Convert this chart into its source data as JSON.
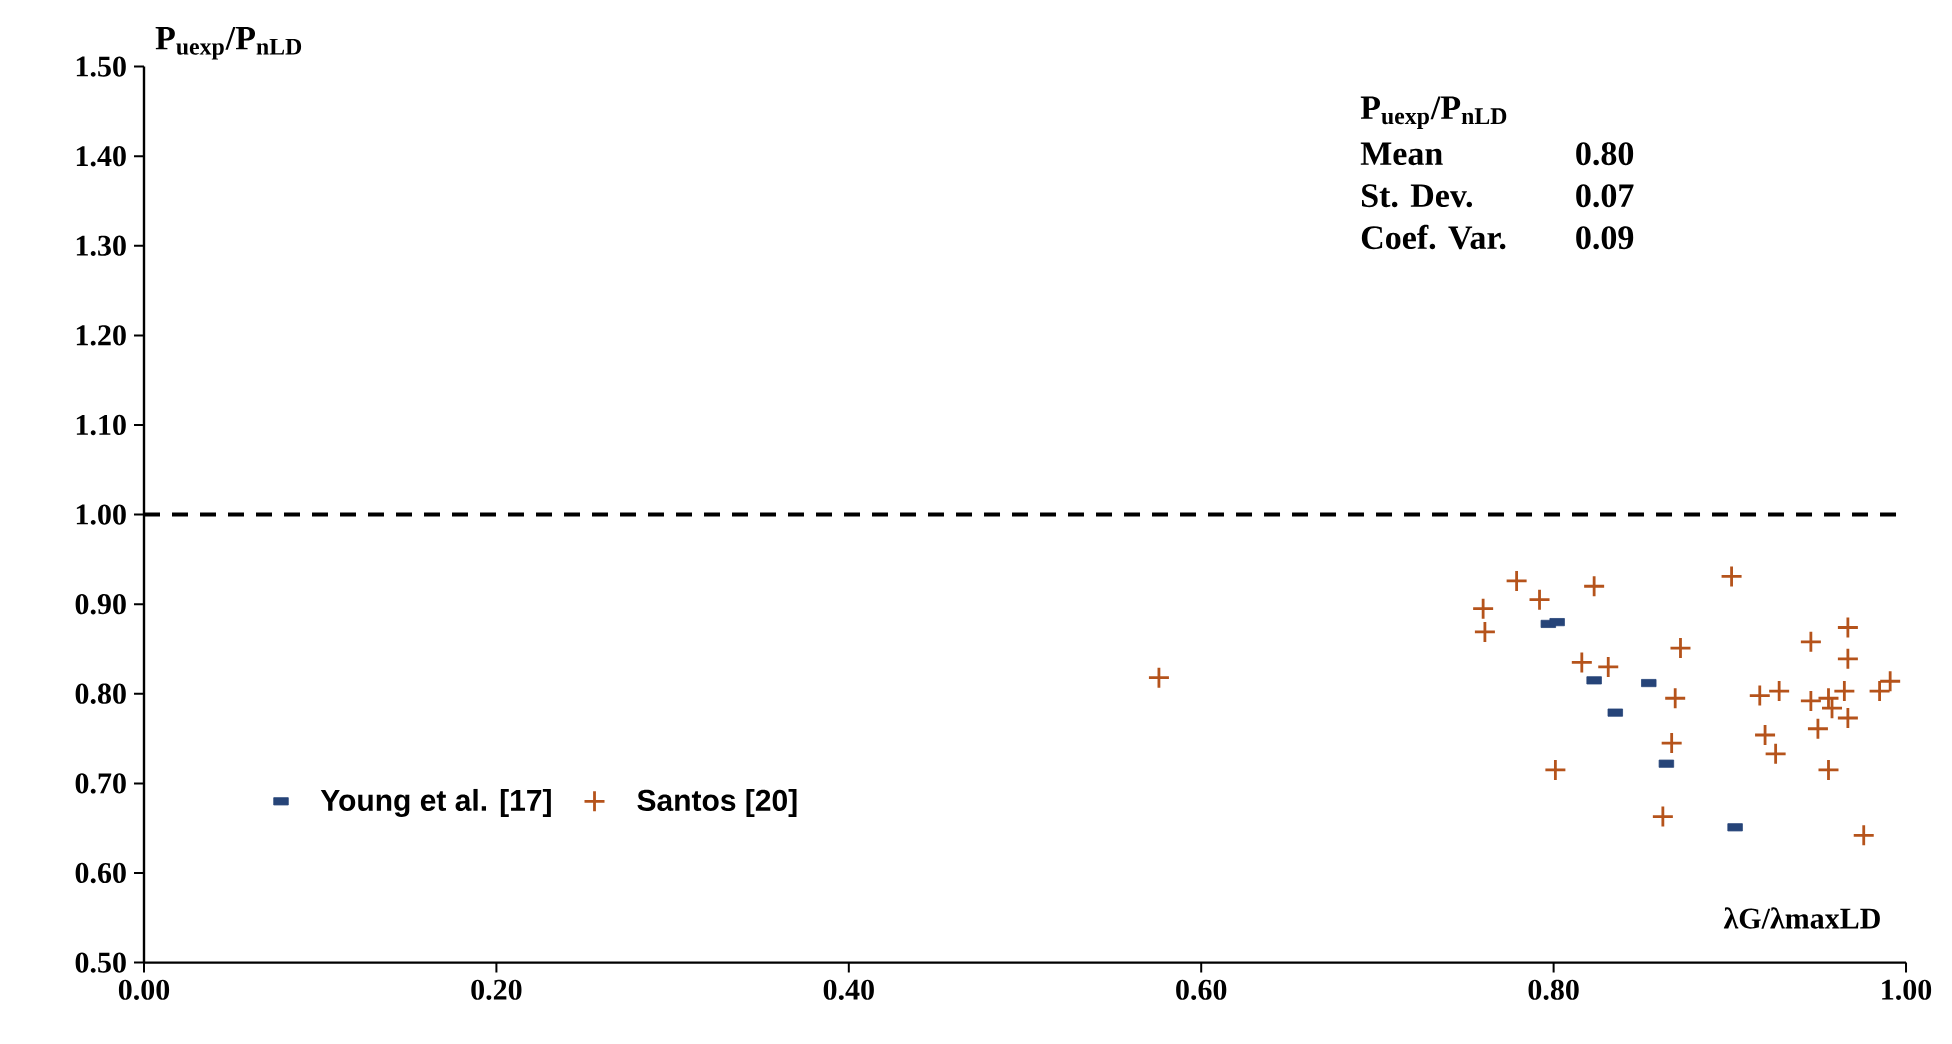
{
  "chart_data": {
    "type": "scatter",
    "xlabel": "λG/λmaxLD",
    "ylabel": "P$_{uexp}$/P$_{nLD}$",
    "xlim": [
      0,
      1
    ],
    "ylim": [
      0.5,
      1.5
    ],
    "xticks": [
      {
        "value": 0,
        "label": "0.00"
      },
      {
        "value": 0.2,
        "label": "0.20"
      },
      {
        "value": 0.4,
        "label": "0.40"
      },
      {
        "value": 0.6,
        "label": "0.60"
      },
      {
        "value": 0.8,
        "label": "0.80"
      },
      {
        "value": 1,
        "label": "1.00"
      }
    ],
    "yticks": [
      {
        "value": 0.5,
        "label": "0.50"
      },
      {
        "value": 0.6,
        "label": "0.60"
      },
      {
        "value": 0.7,
        "label": "0.70"
      },
      {
        "value": 0.8,
        "label": "0.80"
      },
      {
        "value": 0.9,
        "label": "0.90"
      },
      {
        "value": 1.0,
        "label": "1.00"
      },
      {
        "value": 1.1,
        "label": "1.10"
      },
      {
        "value": 1.2,
        "label": "1.20"
      },
      {
        "value": 1.3,
        "label": "1.30"
      },
      {
        "value": 1.4,
        "label": "1.40"
      },
      {
        "value": 1.5,
        "label": "1.50"
      }
    ],
    "grid": false,
    "legend": "left",
    "ref_lines": [
      {
        "axis": "y",
        "value": 1.0,
        "color": "#000000",
        "line_style": "dashed"
      }
    ],
    "annotations": [
      "P$_{uexp}$/P$_{nLD}$",
      "Mean",
      "0.80",
      "St. Dev.",
      "0.07",
      "Coef. Var.",
      "0.09"
    ],
    "series": [
      {
        "name": "Young et al. [17]",
        "color": "#264478",
        "marker": "square",
        "x": [
          0.797,
          0.802,
          0.823,
          0.854,
          0.835,
          0.864,
          0.903
        ],
        "values": [
          0.878,
          0.88,
          0.815,
          0.812,
          0.779,
          0.722,
          0.651
        ]
      },
      {
        "name": "Santos [20]",
        "color": "#b5531b",
        "marker": "plus",
        "x": [
          0.576,
          0.779,
          0.792,
          0.823,
          0.76,
          0.761,
          0.901,
          0.967,
          0.946,
          0.967,
          0.872,
          0.816,
          0.831,
          0.869,
          0.917,
          0.928,
          0.946,
          0.956,
          0.958,
          0.965,
          0.985,
          0.991,
          0.967,
          0.95,
          0.92,
          0.926,
          0.867,
          0.801,
          0.956,
          0.862,
          0.976
        ],
        "values": [
          0.818,
          0.926,
          0.905,
          0.92,
          0.895,
          0.869,
          0.931,
          0.874,
          0.858,
          0.839,
          0.851,
          0.835,
          0.83,
          0.795,
          0.798,
          0.803,
          0.792,
          0.795,
          0.784,
          0.803,
          0.803,
          0.814,
          0.773,
          0.761,
          0.754,
          0.733,
          0.745,
          0.715,
          0.715,
          0.663,
          0.642
        ]
      }
    ]
  }
}
